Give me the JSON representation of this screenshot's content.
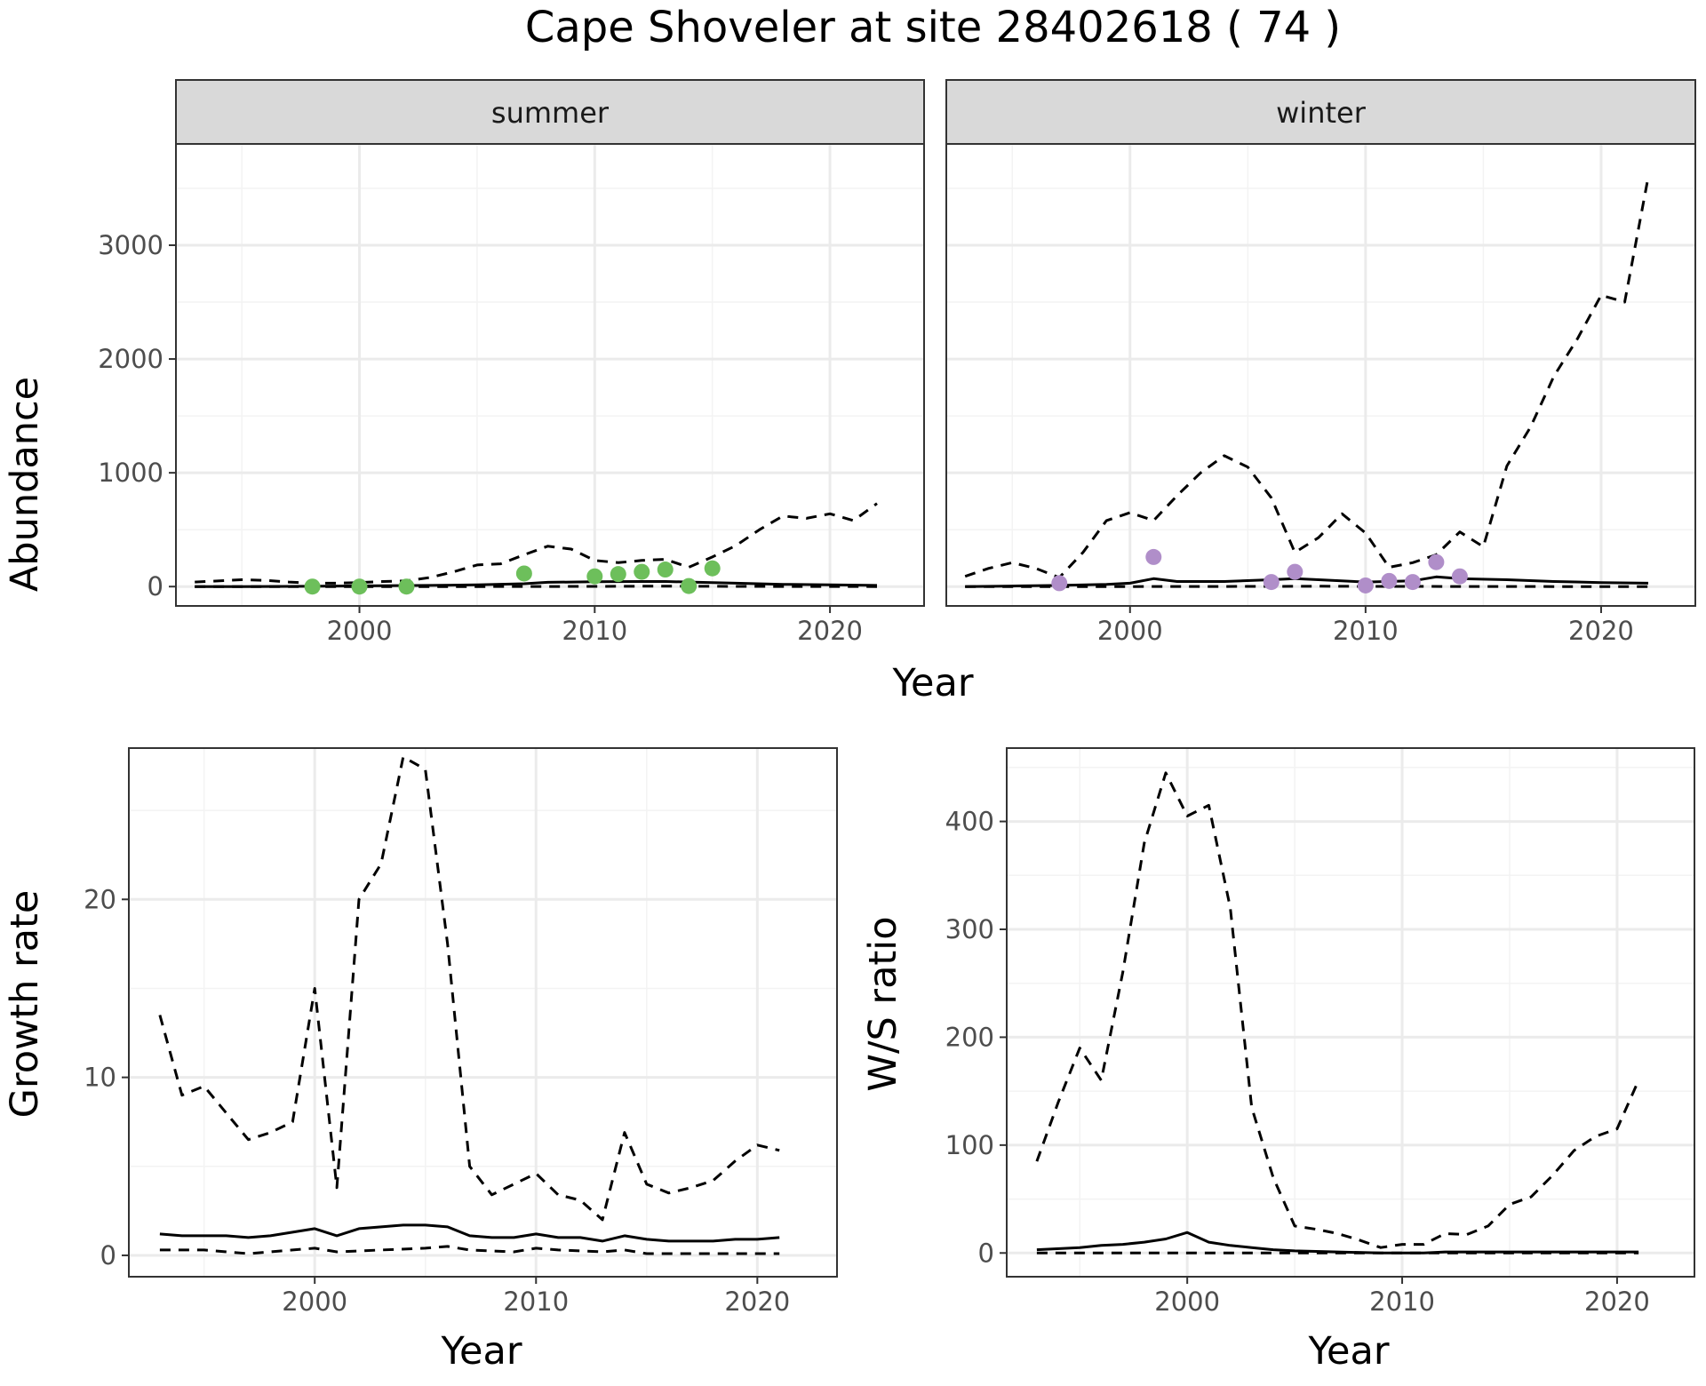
{
  "title": "Cape Shoveler at site 28402618 ( 74 )",
  "colors": {
    "summer_points": "#6dbf5b",
    "winter_points": "#b08ec9",
    "lines": "#000000",
    "grid_major": "#ebebeb",
    "grid_minor": "#f3f3f3",
    "strip_fill": "#d9d9d9",
    "panel_border": "#333333"
  },
  "chart_data": [
    {
      "type": "line",
      "panel": "summer",
      "strip_label": "summer",
      "xlabel": "Year",
      "ylabel": "Abundance",
      "xlim": [
        1992.2,
        2024.0
      ],
      "ylim": [
        -170,
        3890
      ],
      "xticks": [
        2000,
        2010,
        2020
      ],
      "yticks": [
        0,
        1000,
        2000,
        3000
      ],
      "grid": true,
      "points": {
        "x": [
          1998,
          2000,
          2002,
          2007,
          2010,
          2011,
          2012,
          2013,
          2014,
          2015
        ],
        "y": [
          0,
          0,
          0,
          115,
          90,
          110,
          130,
          150,
          5,
          160
        ]
      },
      "series": [
        {
          "style": "solid",
          "x": [
            1993,
            1995,
            1997,
            1999,
            2001,
            2003,
            2005,
            2007,
            2008,
            2010,
            2012,
            2013,
            2014,
            2016,
            2018,
            2020,
            2022
          ],
          "y": [
            0,
            0,
            2,
            5,
            8,
            10,
            15,
            25,
            38,
            42,
            45,
            45,
            40,
            30,
            20,
            15,
            10
          ]
        },
        {
          "style": "dashed",
          "x": [
            1993,
            1995,
            1996,
            1997,
            1998,
            1999,
            2000,
            2001,
            2002,
            2003,
            2004,
            2005,
            2006,
            2007,
            2008,
            2009,
            2010,
            2011,
            2012,
            2013,
            2014,
            2015,
            2016,
            2017,
            2018,
            2019,
            2020,
            2021,
            2022
          ],
          "y": [
            40,
            60,
            55,
            40,
            30,
            30,
            35,
            45,
            50,
            80,
            130,
            190,
            200,
            280,
            355,
            330,
            230,
            210,
            230,
            240,
            170,
            260,
            360,
            500,
            620,
            600,
            640,
            580,
            730
          ]
        },
        {
          "style": "dashed",
          "x": [
            1993,
            1997,
            2000,
            2003,
            2005,
            2008,
            2010,
            2012,
            2013,
            2014,
            2016,
            2018,
            2020,
            2022
          ],
          "y": [
            0,
            0,
            0,
            0,
            0,
            1,
            2,
            3,
            4,
            3,
            2,
            1,
            1,
            0
          ]
        }
      ]
    },
    {
      "type": "line",
      "panel": "winter",
      "strip_label": "winter",
      "xlabel": "Year",
      "ylabel": "Abundance",
      "xlim": [
        1992.2,
        2024.0
      ],
      "ylim": [
        -170,
        3890
      ],
      "xticks": [
        2000,
        2010,
        2020
      ],
      "yticks": [
        0,
        1000,
        2000,
        3000
      ],
      "grid": true,
      "points": {
        "x": [
          1997,
          2001,
          2006,
          2007,
          2010,
          2011,
          2012,
          2013,
          2014
        ],
        "y": [
          30,
          260,
          40,
          130,
          10,
          50,
          40,
          215,
          90
        ]
      },
      "series": [
        {
          "style": "solid",
          "x": [
            1993,
            1995,
            1997,
            1999,
            2000,
            2001,
            2002,
            2004,
            2006,
            2007,
            2008,
            2010,
            2012,
            2013,
            2014,
            2016,
            2018,
            2020,
            2022
          ],
          "y": [
            0,
            5,
            10,
            20,
            30,
            70,
            45,
            45,
            60,
            70,
            60,
            40,
            50,
            85,
            70,
            60,
            45,
            35,
            30
          ]
        },
        {
          "style": "dashed",
          "x": [
            1993,
            1994,
            1995,
            1996,
            1997,
            1998,
            1999,
            2000,
            2001,
            2002,
            2003,
            2004,
            2005,
            2006,
            2007,
            2008,
            2009,
            2010,
            2011,
            2012,
            2013,
            2014,
            2015,
            2016,
            2017,
            2018,
            2019,
            2020,
            2021,
            2022
          ],
          "y": [
            90,
            160,
            210,
            160,
            80,
            300,
            580,
            650,
            580,
            800,
            1000,
            1150,
            1050,
            780,
            300,
            430,
            640,
            470,
            170,
            210,
            280,
            480,
            350,
            1060,
            1400,
            1850,
            2180,
            2560,
            2500,
            3600
          ]
        },
        {
          "style": "dashed",
          "x": [
            1993,
            1997,
            2000,
            2003,
            2006,
            2008,
            2010,
            2012,
            2014,
            2016,
            2018,
            2020,
            2022
          ],
          "y": [
            0,
            0,
            0,
            1,
            2,
            3,
            2,
            2,
            1,
            1,
            0,
            0,
            0
          ]
        }
      ]
    },
    {
      "type": "line",
      "panel": "growth",
      "xlabel": "Year",
      "ylabel": "Growth rate",
      "xlim": [
        1991.6,
        2023.6
      ],
      "ylim": [
        -1.2,
        28.5
      ],
      "xticks": [
        2000,
        2010,
        2020
      ],
      "yticks": [
        0,
        10,
        20
      ],
      "grid": true,
      "series": [
        {
          "style": "solid",
          "x": [
            1993,
            1994,
            1995,
            1996,
            1997,
            1998,
            1999,
            2000,
            2001,
            2002,
            2003,
            2004,
            2005,
            2006,
            2007,
            2008,
            2009,
            2010,
            2011,
            2012,
            2013,
            2014,
            2015,
            2016,
            2017,
            2018,
            2019,
            2020,
            2021
          ],
          "y": [
            1.2,
            1.1,
            1.1,
            1.1,
            1.0,
            1.1,
            1.3,
            1.5,
            1.1,
            1.5,
            1.6,
            1.7,
            1.7,
            1.6,
            1.1,
            1.0,
            1.0,
            1.2,
            1.0,
            1.0,
            0.8,
            1.1,
            0.9,
            0.8,
            0.8,
            0.8,
            0.9,
            0.9,
            1.0
          ]
        },
        {
          "style": "dashed",
          "x": [
            1993,
            1994,
            1995,
            1996,
            1997,
            1998,
            1999,
            2000,
            2001,
            2002,
            2003,
            2004,
            2005,
            2006,
            2007,
            2008,
            2009,
            2010,
            2011,
            2012,
            2013,
            2014,
            2015,
            2016,
            2017,
            2018,
            2019,
            2020,
            2021
          ],
          "y": [
            13.5,
            9.0,
            9.5,
            8.0,
            6.5,
            6.9,
            7.5,
            15.0,
            3.8,
            20.0,
            22.0,
            28.0,
            27.3,
            17.5,
            5.0,
            3.4,
            4.0,
            4.6,
            3.4,
            3.1,
            2.0,
            6.9,
            4.0,
            3.5,
            3.8,
            4.2,
            5.3,
            6.2,
            5.9
          ]
        },
        {
          "style": "dashed",
          "x": [
            1993,
            1995,
            1997,
            1999,
            2000,
            2001,
            2003,
            2005,
            2006,
            2007,
            2009,
            2010,
            2011,
            2013,
            2014,
            2015,
            2017,
            2019,
            2021
          ],
          "y": [
            0.3,
            0.3,
            0.1,
            0.3,
            0.4,
            0.2,
            0.3,
            0.4,
            0.5,
            0.3,
            0.2,
            0.4,
            0.3,
            0.2,
            0.3,
            0.1,
            0.1,
            0.1,
            0.1
          ]
        }
      ]
    },
    {
      "type": "line",
      "panel": "ws_ratio",
      "xlabel": "Year",
      "ylabel": "W/S ratio",
      "xlim": [
        1991.6,
        2023.6
      ],
      "ylim": [
        -22,
        468
      ],
      "xticks": [
        2000,
        2010,
        2020
      ],
      "yticks": [
        0,
        100,
        200,
        300,
        400
      ],
      "grid": true,
      "series": [
        {
          "style": "solid",
          "x": [
            1993,
            1995,
            1996,
            1997,
            1998,
            1999,
            2000,
            2001,
            2002,
            2003,
            2004,
            2005,
            2007,
            2009,
            2011,
            2012,
            2014,
            2016,
            2018,
            2020,
            2021
          ],
          "y": [
            3,
            5,
            7,
            8,
            10,
            13,
            19,
            10,
            7,
            5,
            3,
            2,
            1,
            0,
            0,
            1,
            1,
            1,
            1,
            1,
            1
          ]
        },
        {
          "style": "dashed",
          "x": [
            1993,
            1994,
            1995,
            1996,
            1997,
            1998,
            1999,
            2000,
            2001,
            2002,
            2003,
            2004,
            2005,
            2006,
            2007,
            2008,
            2009,
            2010,
            2011,
            2012,
            2013,
            2014,
            2015,
            2016,
            2017,
            2018,
            2019,
            2020,
            2021
          ],
          "y": [
            85,
            140,
            190,
            160,
            260,
            380,
            445,
            405,
            415,
            320,
            135,
            70,
            25,
            22,
            18,
            12,
            5,
            8,
            8,
            18,
            17,
            25,
            45,
            52,
            72,
            95,
            108,
            115,
            160
          ]
        },
        {
          "style": "dashed",
          "x": [
            1993,
            1996,
            1999,
            2002,
            2005,
            2008,
            2011,
            2014,
            2017,
            2020,
            2021
          ],
          "y": [
            0,
            0,
            0,
            0,
            0,
            0,
            0,
            0,
            0,
            0,
            0
          ]
        }
      ]
    }
  ]
}
